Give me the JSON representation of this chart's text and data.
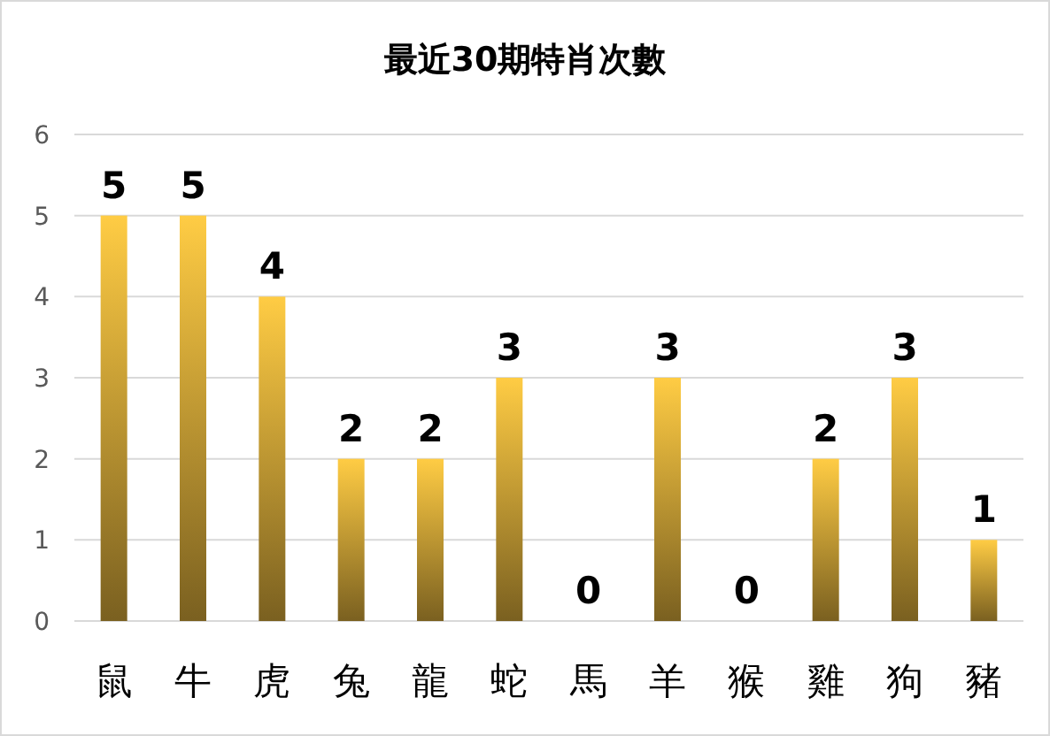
{
  "chart_data": {
    "type": "bar",
    "title": "最近30期特肖次數",
    "categories": [
      "鼠",
      "牛",
      "虎",
      "兔",
      "龍",
      "蛇",
      "馬",
      "羊",
      "猴",
      "雞",
      "狗",
      "豬"
    ],
    "values": [
      5,
      5,
      4,
      2,
      2,
      3,
      0,
      3,
      0,
      2,
      3,
      1
    ],
    "color": "#ffcc44",
    "ylim": [
      0,
      6
    ],
    "yticks": [
      0,
      1,
      2,
      3,
      4,
      5,
      6
    ],
    "grid": "y",
    "data_labels": true
  }
}
